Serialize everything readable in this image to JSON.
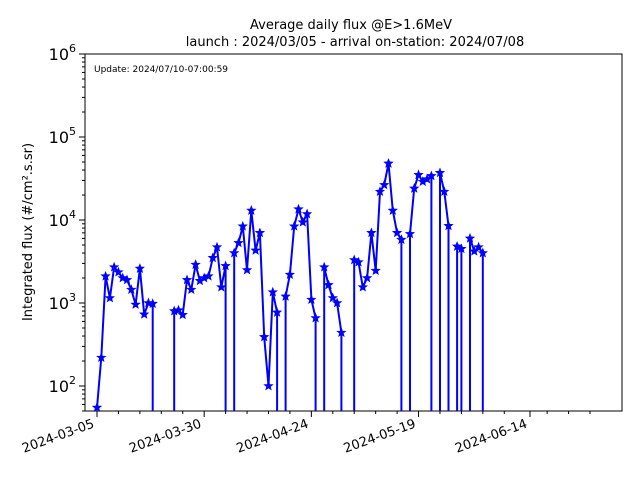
{
  "chart_data": {
    "type": "line",
    "title": "Average daily flux @E>1.6MeV",
    "subtitle": "launch : 2024/03/05 - arrival on-station: 2024/07/08",
    "annotation": "Update: 2024/07/10-07:00:59",
    "ylabel": "Integrated flux (#/cm².s.sr)",
    "xlabel": "",
    "y_scale": "log",
    "ylim": [
      50,
      1000000
    ],
    "xlim": [
      "2024-03-05",
      "2024-07-10"
    ],
    "x_ticks": [
      "2024-03-05",
      "2024-03-30",
      "2024-04-24",
      "2024-05-19",
      "2024-06-14"
    ],
    "y_ticks": [
      {
        "base": "10",
        "exp": "2",
        "value": 100
      },
      {
        "base": "10",
        "exp": "3",
        "value": 1000
      },
      {
        "base": "10",
        "exp": "4",
        "value": 10000
      },
      {
        "base": "10",
        "exp": "5",
        "value": 100000
      },
      {
        "base": "10",
        "exp": "6",
        "value": 1000000
      }
    ],
    "grid": false,
    "color": "#0000ff",
    "marker": "star",
    "series": [
      {
        "points": [
          {
            "x": "2024-03-05",
            "y": 55
          },
          {
            "x": "2024-03-06",
            "y": 220
          },
          {
            "x": "2024-03-07",
            "y": 2100
          },
          {
            "x": "2024-03-08",
            "y": 1150
          },
          {
            "x": "2024-03-09",
            "y": 2700
          },
          {
            "x": "2024-03-10",
            "y": 2350
          },
          {
            "x": "2024-03-11",
            "y": 2000
          },
          {
            "x": "2024-03-12",
            "y": 1900
          },
          {
            "x": "2024-03-13",
            "y": 1450
          },
          {
            "x": "2024-03-14",
            "y": 960
          },
          {
            "x": "2024-03-15",
            "y": 2600
          },
          {
            "x": "2024-03-16",
            "y": 730
          },
          {
            "x": "2024-03-17",
            "y": 1000
          },
          {
            "x": "2024-03-18",
            "y": 980,
            "drop": true
          },
          {
            "x": "2024-03-23",
            "y": 800,
            "rise": true
          },
          {
            "x": "2024-03-24",
            "y": 820
          },
          {
            "x": "2024-03-25",
            "y": 720
          },
          {
            "x": "2024-03-26",
            "y": 1900
          },
          {
            "x": "2024-03-27",
            "y": 1450
          },
          {
            "x": "2024-03-28",
            "y": 2900
          },
          {
            "x": "2024-03-29",
            "y": 1850
          },
          {
            "x": "2024-03-30",
            "y": 2000
          },
          {
            "x": "2024-03-31",
            "y": 2100
          },
          {
            "x": "2024-04-01",
            "y": 3500
          },
          {
            "x": "2024-04-02",
            "y": 4700
          },
          {
            "x": "2024-04-03",
            "y": 1550
          },
          {
            "x": "2024-04-04",
            "y": 2800,
            "drop": true
          },
          {
            "x": "2024-04-06",
            "y": 4000,
            "rise": true
          },
          {
            "x": "2024-04-07",
            "y": 5300
          },
          {
            "x": "2024-04-08",
            "y": 8400
          },
          {
            "x": "2024-04-09",
            "y": 2500
          },
          {
            "x": "2024-04-10",
            "y": 13000
          },
          {
            "x": "2024-04-11",
            "y": 4300
          },
          {
            "x": "2024-04-12",
            "y": 7000
          },
          {
            "x": "2024-04-13",
            "y": 390
          },
          {
            "x": "2024-04-14",
            "y": 100
          },
          {
            "x": "2024-04-15",
            "y": 1350
          },
          {
            "x": "2024-04-16",
            "y": 770,
            "drop": true
          },
          {
            "x": "2024-04-18",
            "y": 1200,
            "rise": true
          },
          {
            "x": "2024-04-19",
            "y": 2200
          },
          {
            "x": "2024-04-20",
            "y": 8400
          },
          {
            "x": "2024-04-21",
            "y": 13500
          },
          {
            "x": "2024-04-22",
            "y": 9400
          },
          {
            "x": "2024-04-23",
            "y": 11800
          },
          {
            "x": "2024-04-24",
            "y": 1100
          },
          {
            "x": "2024-04-25",
            "y": 660,
            "drop": true
          },
          {
            "x": "2024-04-27",
            "y": 2700,
            "rise": true
          },
          {
            "x": "2024-04-28",
            "y": 1650
          },
          {
            "x": "2024-04-29",
            "y": 1150
          },
          {
            "x": "2024-04-30",
            "y": 1000
          },
          {
            "x": "2024-05-01",
            "y": 440,
            "drop": true
          },
          {
            "x": "2024-05-04",
            "y": 3300,
            "rise": true
          },
          {
            "x": "2024-05-05",
            "y": 3100
          },
          {
            "x": "2024-05-06",
            "y": 1550
          },
          {
            "x": "2024-05-07",
            "y": 2000
          },
          {
            "x": "2024-05-08",
            "y": 7000
          },
          {
            "x": "2024-05-09",
            "y": 2450
          },
          {
            "x": "2024-05-10",
            "y": 22000
          },
          {
            "x": "2024-05-11",
            "y": 26500
          },
          {
            "x": "2024-05-12",
            "y": 48000
          },
          {
            "x": "2024-05-13",
            "y": 13000
          },
          {
            "x": "2024-05-14",
            "y": 7000
          },
          {
            "x": "2024-05-15",
            "y": 5800,
            "drop": true
          },
          {
            "x": "2024-05-17",
            "y": 6800,
            "rise": true
          },
          {
            "x": "2024-05-18",
            "y": 24000
          },
          {
            "x": "2024-05-19",
            "y": 35000
          },
          {
            "x": "2024-05-20",
            "y": 29000
          },
          {
            "x": "2024-05-21",
            "y": 31000
          },
          {
            "x": "2024-05-22",
            "y": 34000,
            "drop": true
          },
          {
            "x": "2024-05-24",
            "y": 37000,
            "rise": true
          },
          {
            "x": "2024-05-25",
            "y": 22000
          },
          {
            "x": "2024-05-26",
            "y": 8500,
            "drop": true
          },
          {
            "x": "2024-05-28",
            "y": 4800,
            "rise": true
          },
          {
            "x": "2024-05-29",
            "y": 4500,
            "drop": true
          },
          {
            "x": "2024-05-31",
            "y": 6000,
            "rise": true
          },
          {
            "x": "2024-06-01",
            "y": 4200
          },
          {
            "x": "2024-06-02",
            "y": 4700
          },
          {
            "x": "2024-06-03",
            "y": 4000,
            "drop": true
          }
        ]
      }
    ]
  }
}
